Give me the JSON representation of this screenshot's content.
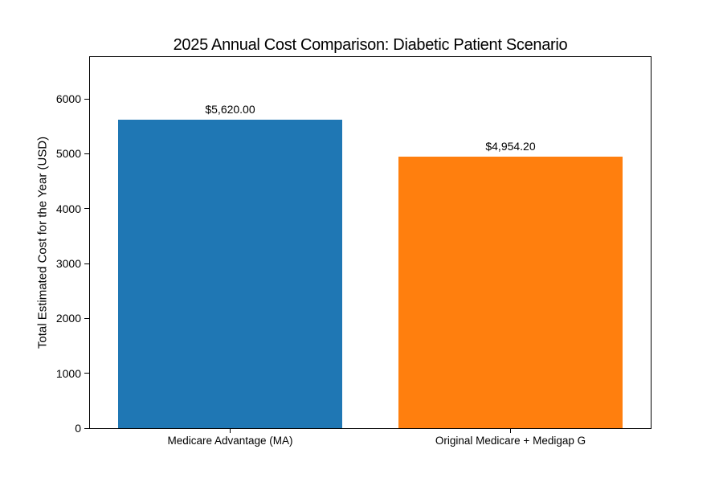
{
  "chart_data": {
    "type": "bar",
    "title": "2025 Annual Cost Comparison: Diabetic Patient Scenario",
    "xlabel": "",
    "ylabel": "Total Estimated Cost for the Year (USD)",
    "categories": [
      "Medicare Advantage (MA)",
      "Original Medicare + Medigap G"
    ],
    "values": [
      5620.0,
      4954.2
    ],
    "bar_labels": [
      "$5,620.00",
      "$4,954.20"
    ],
    "bar_colors": [
      "#1f77b4",
      "#ff7f0e"
    ],
    "yticks": [
      0,
      1000,
      2000,
      3000,
      4000,
      5000,
      6000
    ],
    "ylim": [
      0,
      6764
    ],
    "bar_width_fraction": 0.4,
    "grid": false,
    "legend": "none",
    "background_color": "#ffffff",
    "text_color": "#000000",
    "spine_color": "#000000"
  }
}
